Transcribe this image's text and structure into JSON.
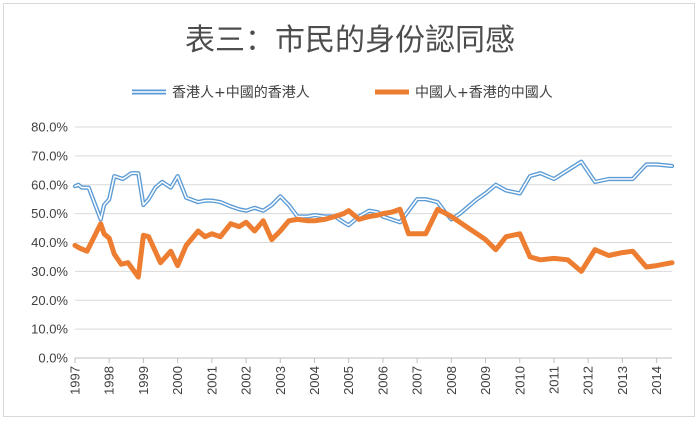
{
  "colors": {
    "series1": "#5b9bd5",
    "series2": "#ed7d31",
    "grid": "#d9d9d9",
    "axis": "#bfbfbf",
    "text": "#404040"
  },
  "chart_data": {
    "type": "line",
    "title": "表三：市民的身份認同感",
    "xlabel": "",
    "ylabel": "",
    "ylim": [
      0,
      0.8
    ],
    "yticks": [
      "0.0%",
      "10.0%",
      "20.0%",
      "30.0%",
      "40.0%",
      "50.0%",
      "60.0%",
      "70.0%",
      "80.0%"
    ],
    "xlim": [
      1997,
      2014.45
    ],
    "xticks": [
      "1997",
      "1998",
      "1999",
      "2000",
      "2001",
      "2002",
      "2003",
      "2004",
      "2005",
      "2006",
      "2007",
      "2008",
      "2009",
      "2010",
      "2011",
      "2012",
      "2013",
      "2014"
    ],
    "grid": "horizontal",
    "legend": "top",
    "series": [
      {
        "name": "香港人+中國的香港人",
        "style": "double-line",
        "x": [
          1997.0,
          1997.1,
          1997.2,
          1997.4,
          1997.75,
          1997.85,
          1998.0,
          1998.15,
          1998.4,
          1998.65,
          1998.85,
          1999.0,
          1999.15,
          1999.35,
          1999.55,
          1999.8,
          2000.0,
          2000.25,
          2000.6,
          2000.8,
          2001.0,
          2001.25,
          2001.55,
          2001.8,
          2002.0,
          2002.25,
          2002.5,
          2002.75,
          2003.0,
          2003.25,
          2003.5,
          2003.8,
          2004.0,
          2004.3,
          2004.6,
          2004.85,
          2005.0,
          2005.3,
          2005.6,
          2005.85,
          2006.0,
          2006.25,
          2006.5,
          2006.75,
          2007.0,
          2007.25,
          2007.6,
          2007.85,
          2008.0,
          2008.25,
          2008.5,
          2008.75,
          2009.0,
          2009.3,
          2009.6,
          2010.0,
          2010.3,
          2010.6,
          2011.0,
          2011.4,
          2011.8,
          2012.2,
          2012.6,
          2013.0,
          2013.3,
          2013.7,
          2014.0,
          2014.45
        ],
        "values": [
          0.595,
          0.6,
          0.59,
          0.59,
          0.48,
          0.53,
          0.55,
          0.63,
          0.62,
          0.64,
          0.64,
          0.53,
          0.55,
          0.59,
          0.61,
          0.59,
          0.63,
          0.555,
          0.54,
          0.545,
          0.545,
          0.54,
          0.525,
          0.515,
          0.51,
          0.52,
          0.51,
          0.53,
          0.56,
          0.53,
          0.49,
          0.49,
          0.495,
          0.49,
          0.49,
          0.47,
          0.46,
          0.49,
          0.51,
          0.505,
          0.49,
          0.48,
          0.47,
          0.51,
          0.55,
          0.55,
          0.54,
          0.5,
          0.48,
          0.5,
          0.525,
          0.55,
          0.57,
          0.6,
          0.58,
          0.57,
          0.63,
          0.64,
          0.62,
          0.65,
          0.68,
          0.61,
          0.62,
          0.62,
          0.62,
          0.67,
          0.67,
          0.665
        ]
      },
      {
        "name": "中國人+香港的中國人",
        "style": "thick-line",
        "x": [
          1997.0,
          1997.15,
          1997.35,
          1997.75,
          1997.85,
          1998.0,
          1998.15,
          1998.35,
          1998.55,
          1998.85,
          1999.0,
          1999.15,
          1999.5,
          1999.8,
          2000.0,
          2000.25,
          2000.6,
          2000.8,
          2001.0,
          2001.25,
          2001.55,
          2001.8,
          2002.0,
          2002.25,
          2002.5,
          2002.75,
          2003.0,
          2003.25,
          2003.5,
          2003.8,
          2004.0,
          2004.3,
          2004.6,
          2004.85,
          2005.0,
          2005.3,
          2005.6,
          2005.85,
          2006.0,
          2006.25,
          2006.5,
          2006.75,
          2007.0,
          2007.25,
          2007.6,
          2007.85,
          2008.0,
          2008.25,
          2008.5,
          2008.75,
          2009.0,
          2009.3,
          2009.6,
          2010.0,
          2010.3,
          2010.6,
          2011.0,
          2011.4,
          2011.8,
          2012.2,
          2012.6,
          2013.0,
          2013.3,
          2013.7,
          2014.0,
          2014.45
        ],
        "values": [
          0.39,
          0.38,
          0.37,
          0.465,
          0.43,
          0.415,
          0.36,
          0.325,
          0.33,
          0.28,
          0.425,
          0.42,
          0.33,
          0.37,
          0.32,
          0.39,
          0.44,
          0.42,
          0.43,
          0.42,
          0.465,
          0.455,
          0.47,
          0.44,
          0.475,
          0.41,
          0.44,
          0.475,
          0.48,
          0.475,
          0.475,
          0.48,
          0.49,
          0.5,
          0.51,
          0.48,
          0.49,
          0.495,
          0.5,
          0.505,
          0.515,
          0.43,
          0.43,
          0.43,
          0.515,
          0.5,
          0.49,
          0.47,
          0.45,
          0.43,
          0.41,
          0.375,
          0.42,
          0.43,
          0.35,
          0.34,
          0.345,
          0.34,
          0.3,
          0.375,
          0.355,
          0.365,
          0.37,
          0.315,
          0.32,
          0.33
        ]
      }
    ]
  }
}
